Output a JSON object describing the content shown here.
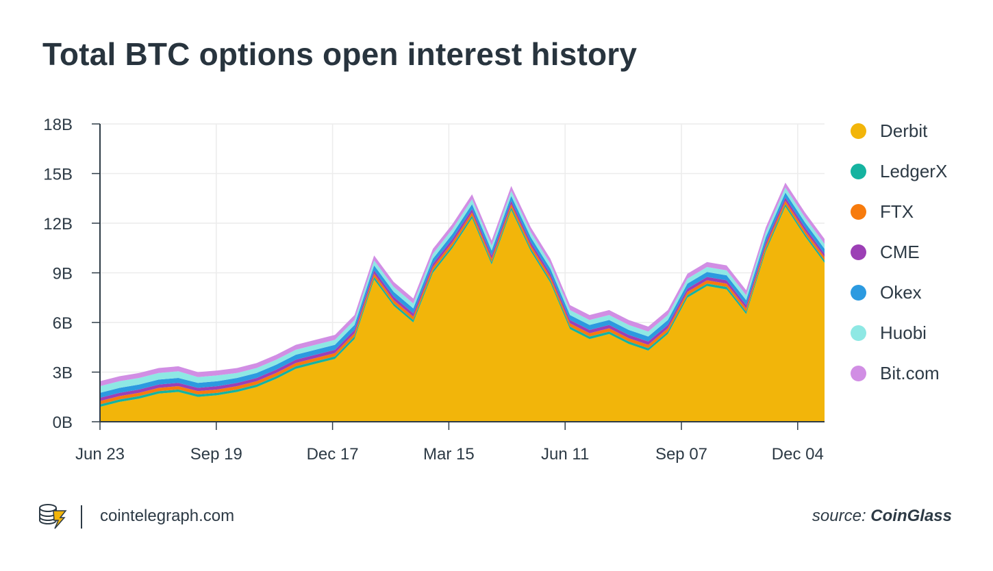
{
  "title": "Total BTC options open interest history",
  "footer": {
    "site": "cointelegraph.com",
    "source_prefix": "source:",
    "source_name": "CoinGlass"
  },
  "colors": {
    "Derbit": "#f2b50a",
    "LedgerX": "#15b3a0",
    "FTX": "#f77b0d",
    "CME": "#9c3fb5",
    "Okex": "#2c9ae0",
    "Huobi": "#8ee8e4",
    "Bit.com": "#d18ee4"
  },
  "chart_data": {
    "type": "area",
    "stacked": true,
    "title": "Total BTC options open interest history",
    "xlabel": "",
    "ylabel": "",
    "x_ticks": [
      "Jun 23",
      "Sep 19",
      "Dec 17",
      "Mar 15",
      "Jun 11",
      "Sep 07",
      "Dec 04"
    ],
    "y_ticks": [
      "0B",
      "3B",
      "6B",
      "9B",
      "12B",
      "15B",
      "18B"
    ],
    "ylim": [
      0,
      18
    ],
    "unit": "B",
    "legend_position": "right",
    "grid": true,
    "x": [
      "Jun 23",
      "Jul 07",
      "Jul 21",
      "Aug 04",
      "Aug 18",
      "Sep 01",
      "Sep 19",
      "Oct 03",
      "Oct 17",
      "Oct 31",
      "Nov 14",
      "Nov 28",
      "Dec 17",
      "Dec 31",
      "Jan 14",
      "Jan 28",
      "Feb 11",
      "Feb 25",
      "Mar 15",
      "Mar 29",
      "Apr 12",
      "Apr 26",
      "May 10",
      "May 24",
      "Jun 11",
      "Jun 25",
      "Jul 09",
      "Jul 23",
      "Aug 06",
      "Aug 20",
      "Sep 07",
      "Sep 21",
      "Oct 05",
      "Oct 19",
      "Nov 02",
      "Nov 16",
      "Dec 04",
      "Dec 18"
    ],
    "series": [
      {
        "name": "Derbit",
        "values": [
          0.9,
          1.2,
          1.4,
          1.7,
          1.8,
          1.5,
          1.6,
          1.8,
          2.1,
          2.6,
          3.2,
          3.5,
          3.8,
          5.0,
          8.6,
          7.0,
          6.0,
          9.0,
          10.5,
          12.3,
          9.5,
          12.8,
          10.3,
          8.4,
          5.6,
          5.0,
          5.3,
          4.7,
          4.3,
          5.3,
          7.5,
          8.2,
          8.0,
          6.5,
          10.3,
          13.0,
          11.2,
          9.6
        ]
      },
      {
        "name": "LedgerX",
        "values": [
          0.15,
          0.15,
          0.15,
          0.15,
          0.15,
          0.15,
          0.15,
          0.15,
          0.15,
          0.15,
          0.15,
          0.15,
          0.15,
          0.15,
          0.15,
          0.15,
          0.15,
          0.15,
          0.15,
          0.15,
          0.15,
          0.15,
          0.15,
          0.15,
          0.15,
          0.15,
          0.15,
          0.15,
          0.15,
          0.15,
          0.15,
          0.15,
          0.15,
          0.15,
          0.15,
          0.15,
          0.15,
          0.15
        ]
      },
      {
        "name": "FTX",
        "values": [
          0.2,
          0.2,
          0.2,
          0.2,
          0.2,
          0.2,
          0.2,
          0.2,
          0.2,
          0.2,
          0.2,
          0.2,
          0.2,
          0.2,
          0.2,
          0.2,
          0.2,
          0.2,
          0.2,
          0.2,
          0.2,
          0.2,
          0.2,
          0.2,
          0.2,
          0.2,
          0.2,
          0.2,
          0.2,
          0.2,
          0.2,
          0.2,
          0.2,
          0.2,
          0.2,
          0.2,
          0.2,
          0.2
        ]
      },
      {
        "name": "CME",
        "values": [
          0.2,
          0.2,
          0.2,
          0.2,
          0.2,
          0.2,
          0.2,
          0.2,
          0.2,
          0.2,
          0.2,
          0.2,
          0.2,
          0.2,
          0.2,
          0.2,
          0.2,
          0.2,
          0.2,
          0.2,
          0.2,
          0.2,
          0.2,
          0.2,
          0.2,
          0.2,
          0.2,
          0.2,
          0.2,
          0.2,
          0.2,
          0.2,
          0.2,
          0.2,
          0.2,
          0.2,
          0.2,
          0.2
        ]
      },
      {
        "name": "Okex",
        "values": [
          0.3,
          0.3,
          0.3,
          0.3,
          0.3,
          0.3,
          0.3,
          0.3,
          0.3,
          0.3,
          0.3,
          0.3,
          0.3,
          0.3,
          0.3,
          0.3,
          0.3,
          0.3,
          0.3,
          0.3,
          0.3,
          0.3,
          0.3,
          0.3,
          0.3,
          0.3,
          0.3,
          0.3,
          0.3,
          0.3,
          0.3,
          0.3,
          0.3,
          0.3,
          0.3,
          0.3,
          0.3,
          0.3
        ]
      },
      {
        "name": "Huobi",
        "values": [
          0.4,
          0.4,
          0.4,
          0.4,
          0.4,
          0.35,
          0.35,
          0.3,
          0.3,
          0.3,
          0.3,
          0.3,
          0.3,
          0.3,
          0.3,
          0.3,
          0.3,
          0.3,
          0.3,
          0.3,
          0.3,
          0.3,
          0.3,
          0.3,
          0.3,
          0.3,
          0.3,
          0.3,
          0.3,
          0.3,
          0.3,
          0.3,
          0.3,
          0.3,
          0.3,
          0.3,
          0.3,
          0.3
        ]
      },
      {
        "name": "Bit.com",
        "values": [
          0.3,
          0.3,
          0.3,
          0.3,
          0.3,
          0.3,
          0.3,
          0.3,
          0.3,
          0.3,
          0.3,
          0.3,
          0.3,
          0.3,
          0.3,
          0.3,
          0.3,
          0.3,
          0.3,
          0.3,
          0.3,
          0.3,
          0.3,
          0.3,
          0.3,
          0.3,
          0.3,
          0.3,
          0.3,
          0.3,
          0.3,
          0.3,
          0.3,
          0.3,
          0.3,
          0.3,
          0.3,
          0.3
        ]
      }
    ]
  }
}
